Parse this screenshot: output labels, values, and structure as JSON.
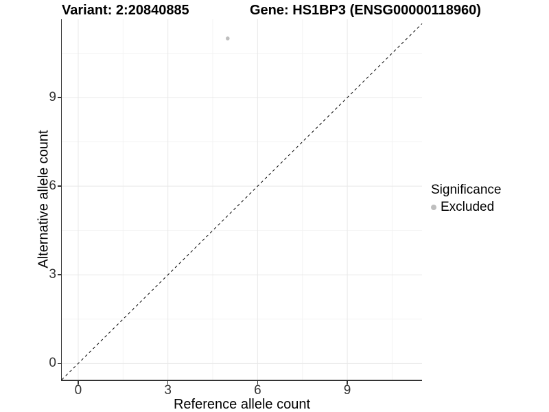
{
  "header": {
    "variant_title": "Variant: 2:20840885",
    "gene_title": "Gene: HS1BP3 (ENSG00000118960)"
  },
  "chart_data": {
    "type": "scatter",
    "xlabel": "Reference allele count",
    "ylabel": "Alternative allele count",
    "xticks": [
      0,
      3,
      6,
      9
    ],
    "yticks": [
      0,
      3,
      6,
      9
    ],
    "xlim": [
      -0.55,
      11.5
    ],
    "ylim": [
      -0.55,
      11.65
    ],
    "grid": "on",
    "points": [
      {
        "x": 5,
        "y": 11,
        "significance": "Excluded"
      }
    ],
    "point_color": "#bebebe",
    "point_radius": 2.8,
    "identity_line": {
      "equation": "y = x",
      "style": "dashed",
      "color": "#000000"
    },
    "legend": {
      "title": "Significance",
      "position": "right",
      "items": [
        {
          "label": "Excluded",
          "color": "#bebebe"
        }
      ]
    },
    "colors": {
      "axis": "#333333",
      "grid_major": "#e8e8e8",
      "grid_minor": "#f3f3f3",
      "tick_text": "#333333"
    }
  }
}
